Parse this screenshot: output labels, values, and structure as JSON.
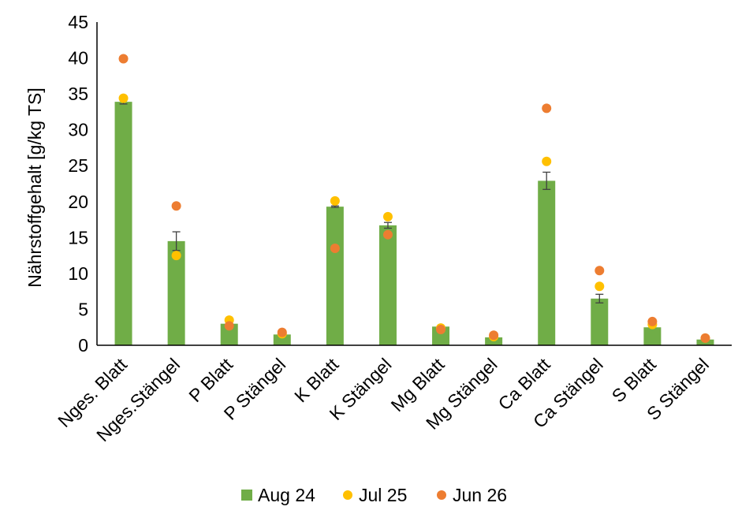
{
  "chart_data": {
    "type": "bar",
    "title": "",
    "xlabel": "",
    "ylabel": "Nährstoffgehalt [g/kg TS]",
    "ylim": [
      0,
      45
    ],
    "yticks": [
      0,
      5,
      10,
      15,
      20,
      25,
      30,
      35,
      40,
      45
    ],
    "grid": false,
    "legend_position": "bottom",
    "categories": [
      "Nges. Blatt",
      "Nges.Stängel",
      "P Blatt",
      "P Stängel",
      "K Blatt",
      "K Stängel",
      "Mg Blatt",
      "Mg Stängel",
      "Ca Blatt",
      "Ca Stängel",
      "S Blatt",
      "S Stängel"
    ],
    "series": [
      {
        "name": "Aug 24",
        "kind": "bar",
        "color": "#70AD47",
        "values": [
          33.9,
          14.5,
          3.0,
          1.5,
          19.3,
          16.7,
          2.6,
          1.1,
          22.9,
          6.5,
          2.5,
          0.8
        ],
        "errors": [
          0.3,
          1.3,
          0.0,
          0.0,
          0.1,
          0.4,
          0.0,
          0.0,
          1.2,
          0.6,
          0.0,
          0.0
        ]
      },
      {
        "name": "Jul 25",
        "kind": "point",
        "color": "#FFC000",
        "values": [
          34.4,
          12.5,
          3.5,
          1.6,
          20.1,
          17.9,
          2.4,
          1.2,
          25.6,
          8.2,
          2.9,
          1.0
        ]
      },
      {
        "name": "Jun 26",
        "kind": "point",
        "color": "#ED7D31",
        "values": [
          39.9,
          19.4,
          2.7,
          1.8,
          13.5,
          15.4,
          2.2,
          1.4,
          33.0,
          10.4,
          3.3,
          1.0
        ]
      }
    ]
  }
}
